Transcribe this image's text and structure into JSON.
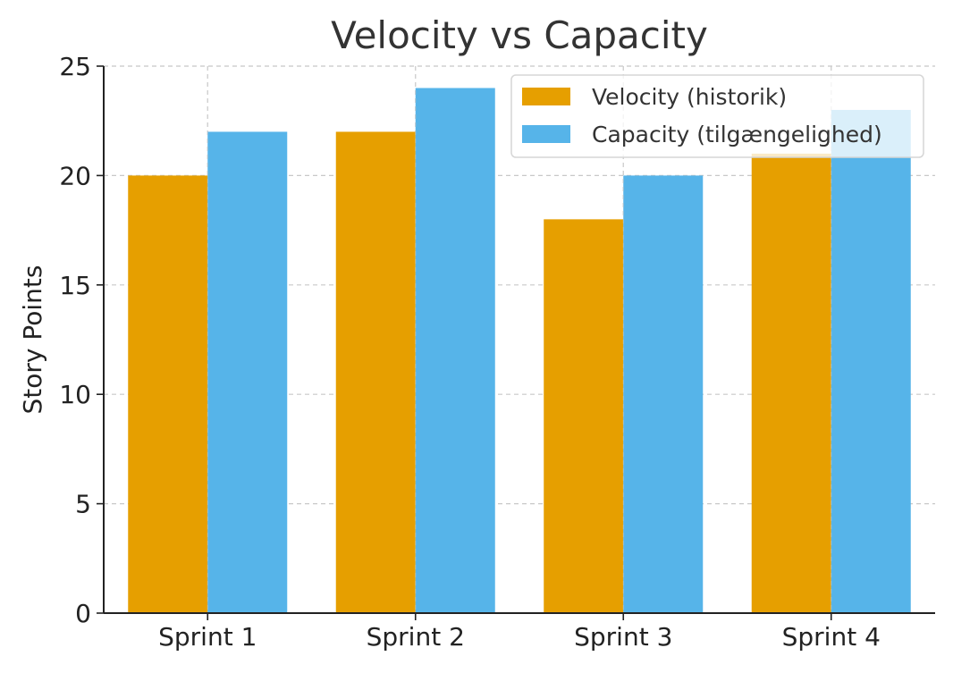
{
  "chart_data": {
    "type": "bar",
    "title": "Velocity vs Capacity",
    "xlabel": "",
    "ylabel": "Story Points",
    "categories": [
      "Sprint 1",
      "Sprint 2",
      "Sprint 3",
      "Sprint 4"
    ],
    "series": [
      {
        "name": "Velocity (historik)",
        "values": [
          20,
          22,
          18,
          21
        ],
        "color": "#E69F00"
      },
      {
        "name": "Capacity (tilgængelighed)",
        "values": [
          22,
          24,
          20,
          23
        ],
        "color": "#56B4E9"
      }
    ],
    "ylim": [
      0,
      25
    ],
    "yticks": [
      0,
      5,
      10,
      15,
      20,
      25
    ],
    "grid": true,
    "legend_position": "top-right"
  }
}
